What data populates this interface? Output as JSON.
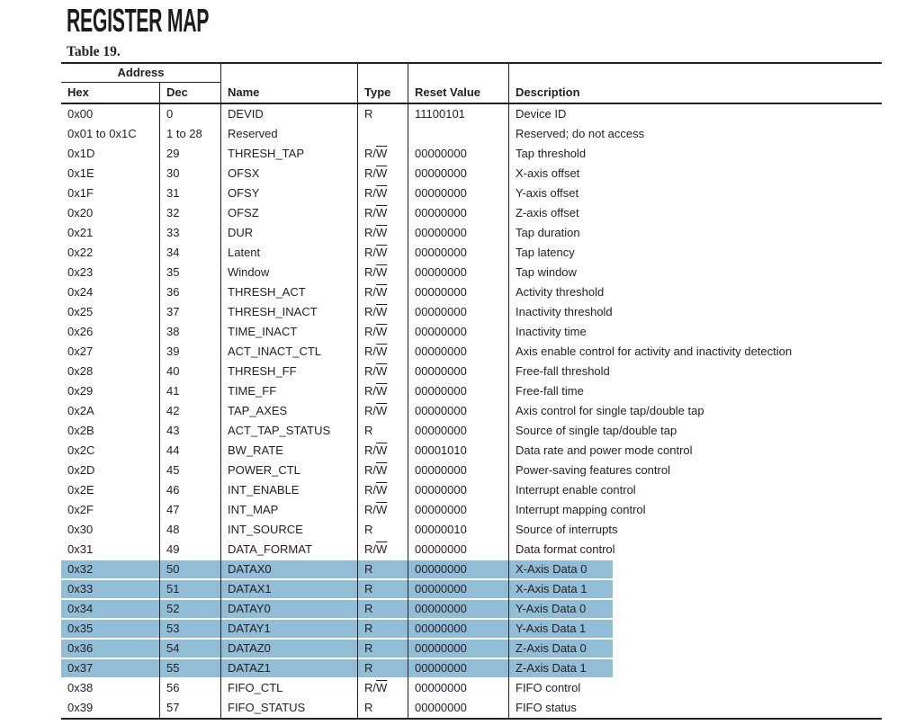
{
  "page": {
    "title": "REGISTER MAP",
    "table_caption": "Table 19."
  },
  "table": {
    "highlight_color": "#92bdd6",
    "header": {
      "address_group": "Address",
      "hex": "Hex",
      "dec": "Dec",
      "name": "Name",
      "type": "Type",
      "reset": "Reset Value",
      "desc": "Description"
    },
    "rows": [
      {
        "hex": "0x00",
        "dec": "0",
        "name": "DEVID",
        "type": "R",
        "overline_w": false,
        "reset": "11100101",
        "desc": "Device ID",
        "highlight": false
      },
      {
        "hex": "0x01 to 0x1C",
        "dec": "1 to 28",
        "name": "Reserved",
        "type": "",
        "overline_w": false,
        "reset": "",
        "desc": "Reserved; do not access",
        "highlight": false
      },
      {
        "hex": "0x1D",
        "dec": "29",
        "name": "THRESH_TAP",
        "type": "R/W",
        "overline_w": true,
        "reset": "00000000",
        "desc": "Tap threshold",
        "highlight": false
      },
      {
        "hex": "0x1E",
        "dec": "30",
        "name": "OFSX",
        "type": "R/W",
        "overline_w": true,
        "reset": "00000000",
        "desc": "X-axis offset",
        "highlight": false
      },
      {
        "hex": "0x1F",
        "dec": "31",
        "name": "OFSY",
        "type": "R/W",
        "overline_w": true,
        "reset": "00000000",
        "desc": "Y-axis offset",
        "highlight": false
      },
      {
        "hex": "0x20",
        "dec": "32",
        "name": "OFSZ",
        "type": "R/W",
        "overline_w": true,
        "reset": "00000000",
        "desc": "Z-axis offset",
        "highlight": false
      },
      {
        "hex": "0x21",
        "dec": "33",
        "name": "DUR",
        "type": "R/W",
        "overline_w": true,
        "reset": "00000000",
        "desc": "Tap duration",
        "highlight": false
      },
      {
        "hex": "0x22",
        "dec": "34",
        "name": "Latent",
        "type": "R/W",
        "overline_w": true,
        "reset": "00000000",
        "desc": "Tap latency",
        "highlight": false
      },
      {
        "hex": "0x23",
        "dec": "35",
        "name": "Window",
        "type": "R/W",
        "overline_w": true,
        "reset": "00000000",
        "desc": "Tap window",
        "highlight": false
      },
      {
        "hex": "0x24",
        "dec": "36",
        "name": "THRESH_ACT",
        "type": "R/W",
        "overline_w": true,
        "reset": "00000000",
        "desc": "Activity threshold",
        "highlight": false
      },
      {
        "hex": "0x25",
        "dec": "37",
        "name": "THRESH_INACT",
        "type": "R/W",
        "overline_w": true,
        "reset": "00000000",
        "desc": "Inactivity threshold",
        "highlight": false
      },
      {
        "hex": "0x26",
        "dec": "38",
        "name": "TIME_INACT",
        "type": "R/W",
        "overline_w": true,
        "reset": "00000000",
        "desc": "Inactivity time",
        "highlight": false
      },
      {
        "hex": "0x27",
        "dec": "39",
        "name": "ACT_INACT_CTL",
        "type": "R/W",
        "overline_w": true,
        "reset": "00000000",
        "desc": "Axis enable control for activity and inactivity detection",
        "highlight": false
      },
      {
        "hex": "0x28",
        "dec": "40",
        "name": "THRESH_FF",
        "type": "R/W",
        "overline_w": true,
        "reset": "00000000",
        "desc": "Free-fall threshold",
        "highlight": false
      },
      {
        "hex": "0x29",
        "dec": "41",
        "name": "TIME_FF",
        "type": "R/W",
        "overline_w": true,
        "reset": "00000000",
        "desc": "Free-fall time",
        "highlight": false
      },
      {
        "hex": "0x2A",
        "dec": "42",
        "name": "TAP_AXES",
        "type": "R/W",
        "overline_w": true,
        "reset": "00000000",
        "desc": "Axis control for single tap/double tap",
        "highlight": false
      },
      {
        "hex": "0x2B",
        "dec": "43",
        "name": "ACT_TAP_STATUS",
        "type": "R",
        "overline_w": false,
        "reset": "00000000",
        "desc": "Source of single tap/double tap",
        "highlight": false
      },
      {
        "hex": "0x2C",
        "dec": "44",
        "name": "BW_RATE",
        "type": "R/W",
        "overline_w": true,
        "reset": "00001010",
        "desc": "Data rate and power mode control",
        "highlight": false
      },
      {
        "hex": "0x2D",
        "dec": "45",
        "name": "POWER_CTL",
        "type": "R/W",
        "overline_w": true,
        "reset": "00000000",
        "desc": "Power-saving features control",
        "highlight": false
      },
      {
        "hex": "0x2E",
        "dec": "46",
        "name": "INT_ENABLE",
        "type": "R/W",
        "overline_w": true,
        "reset": "00000000",
        "desc": "Interrupt enable control",
        "highlight": false
      },
      {
        "hex": "0x2F",
        "dec": "47",
        "name": "INT_MAP",
        "type": "R/W",
        "overline_w": true,
        "reset": "00000000",
        "desc": "Interrupt mapping control",
        "highlight": false
      },
      {
        "hex": "0x30",
        "dec": "48",
        "name": "INT_SOURCE",
        "type": "R",
        "overline_w": false,
        "reset": "00000010",
        "desc": "Source of interrupts",
        "highlight": false
      },
      {
        "hex": "0x31",
        "dec": "49",
        "name": "DATA_FORMAT",
        "type": "R/W",
        "overline_w": true,
        "reset": "00000000",
        "desc": "Data format control",
        "highlight": false
      },
      {
        "hex": "0x32",
        "dec": "50",
        "name": "DATAX0",
        "type": "R",
        "overline_w": false,
        "reset": "00000000",
        "desc": "X-Axis Data 0",
        "highlight": true
      },
      {
        "hex": "0x33",
        "dec": "51",
        "name": "DATAX1",
        "type": "R",
        "overline_w": false,
        "reset": "00000000",
        "desc": "X-Axis Data 1",
        "highlight": true
      },
      {
        "hex": "0x34",
        "dec": "52",
        "name": "DATAY0",
        "type": "R",
        "overline_w": false,
        "reset": "00000000",
        "desc": "Y-Axis Data 0",
        "highlight": true
      },
      {
        "hex": "0x35",
        "dec": "53",
        "name": "DATAY1",
        "type": "R",
        "overline_w": false,
        "reset": "00000000",
        "desc": "Y-Axis Data 1",
        "highlight": true
      },
      {
        "hex": "0x36",
        "dec": "54",
        "name": "DATAZ0",
        "type": "R",
        "overline_w": false,
        "reset": "00000000",
        "desc": "Z-Axis Data 0",
        "highlight": true
      },
      {
        "hex": "0x37",
        "dec": "55",
        "name": "DATAZ1",
        "type": "R",
        "overline_w": false,
        "reset": "00000000",
        "desc": "Z-Axis Data 1",
        "highlight": true
      },
      {
        "hex": "0x38",
        "dec": "56",
        "name": "FIFO_CTL",
        "type": "R/W",
        "overline_w": true,
        "reset": "00000000",
        "desc": "FIFO control",
        "highlight": false
      },
      {
        "hex": "0x39",
        "dec": "57",
        "name": "FIFO_STATUS",
        "type": "R",
        "overline_w": false,
        "reset": "00000000",
        "desc": "FIFO status",
        "highlight": false
      }
    ]
  }
}
